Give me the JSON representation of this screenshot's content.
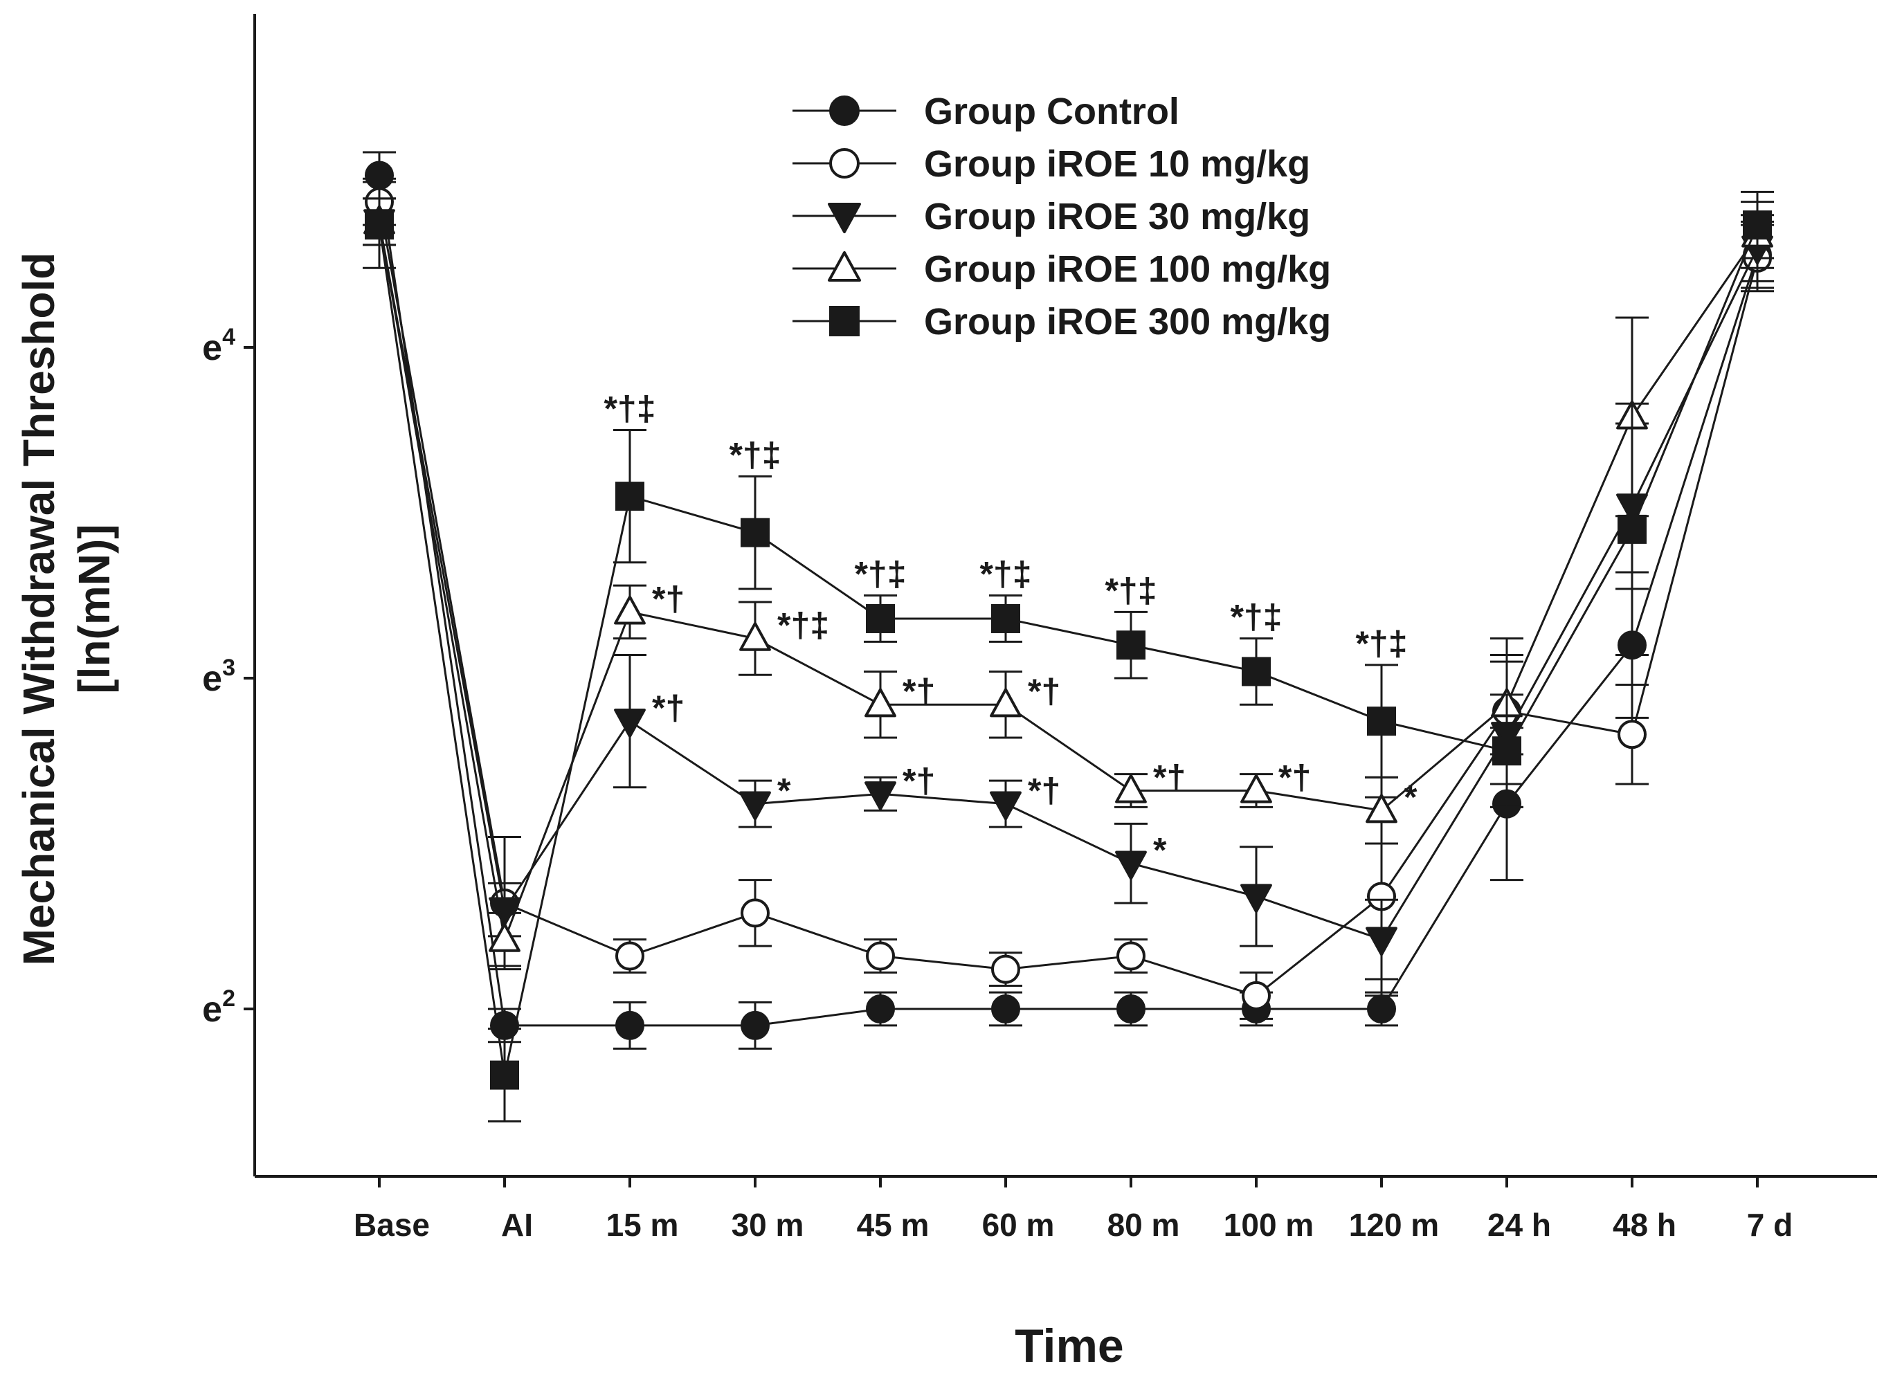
{
  "chart_data": {
    "type": "line",
    "title": "",
    "xlabel": "Time",
    "ylabel_line1": "Mechanical Withdrawal Threshold",
    "ylabel_line2": "[ln(mN)]",
    "categories": [
      "Base",
      "AI",
      "15 m",
      "30 m",
      "45 m",
      "60 m",
      "80 m",
      "100 m",
      "120 m",
      "24 h",
      "48 h",
      "7 d"
    ],
    "yscale": "natural-log",
    "ylim": [
      1.58,
      4.98
    ],
    "yticks": [
      {
        "value": 2,
        "base": "e",
        "exp": "2"
      },
      {
        "value": 3,
        "base": "e",
        "exp": "3"
      },
      {
        "value": 4,
        "base": "e",
        "exp": "4"
      }
    ],
    "legend_position": "top-center",
    "series": [
      {
        "name": "Group Control",
        "marker": "circle-filled",
        "values": [
          4.52,
          1.95,
          1.95,
          1.95,
          2.0,
          2.0,
          2.0,
          2.0,
          2.0,
          2.62,
          3.1,
          4.28
        ],
        "errors": [
          0.07,
          0.05,
          0.07,
          0.07,
          0.05,
          0.05,
          0.05,
          0.05,
          0.05,
          0.23,
          0.22,
          0.1
        ]
      },
      {
        "name": "Group iROE 10 mg/kg",
        "marker": "circle-open",
        "values": [
          4.44,
          2.32,
          2.16,
          2.29,
          2.16,
          2.12,
          2.16,
          2.04,
          2.34,
          2.9,
          2.83,
          4.27
        ],
        "errors": [
          0.07,
          0.2,
          0.05,
          0.1,
          0.05,
          0.05,
          0.05,
          0.07,
          0.3,
          0.22,
          0.15,
          0.1
        ]
      },
      {
        "name": "Group iROE 30 mg/kg",
        "marker": "triangle-down-filled",
        "values": [
          4.38,
          2.3,
          2.87,
          2.62,
          2.65,
          2.62,
          2.44,
          2.34,
          2.21,
          2.83,
          3.52,
          4.3
        ],
        "errors": [
          0.07,
          0.08,
          0.2,
          0.07,
          0.05,
          0.07,
          0.12,
          0.15,
          0.12,
          0.22,
          0.25,
          0.1
        ]
      },
      {
        "name": "Group iROE 100 mg/kg",
        "marker": "triangle-up-filled-open",
        "values": [
          4.38,
          2.21,
          3.2,
          3.12,
          2.92,
          2.92,
          2.66,
          2.66,
          2.6,
          2.92,
          3.79,
          4.34
        ],
        "errors": [
          0.07,
          0.08,
          0.08,
          0.11,
          0.1,
          0.1,
          0.05,
          0.05,
          0.1,
          0.15,
          0.3,
          0.1
        ]
      },
      {
        "name": "Group iROE 300 mg/kg",
        "marker": "square-filled",
        "values": [
          4.37,
          1.8,
          3.55,
          3.44,
          3.18,
          3.18,
          3.1,
          3.02,
          2.87,
          2.78,
          3.45,
          4.37
        ],
        "errors": [
          0.13,
          0.14,
          0.2,
          0.17,
          0.07,
          0.07,
          0.1,
          0.1,
          0.17,
          0.17,
          0.38,
          0.1
        ]
      }
    ],
    "annotations": [
      {
        "text": "*†‡",
        "series": "Group iROE 300 mg/kg",
        "index": 2
      },
      {
        "text": "*†‡",
        "series": "Group iROE 300 mg/kg",
        "index": 3
      },
      {
        "text": "*†‡",
        "series": "Group iROE 300 mg/kg",
        "index": 4
      },
      {
        "text": "*†‡",
        "series": "Group iROE 300 mg/kg",
        "index": 5
      },
      {
        "text": "*†‡",
        "series": "Group iROE 300 mg/kg",
        "index": 6
      },
      {
        "text": "*†‡",
        "series": "Group iROE 300 mg/kg",
        "index": 7
      },
      {
        "text": "*†‡",
        "series": "Group iROE 300 mg/kg",
        "index": 8
      },
      {
        "text": "*†",
        "series": "Group iROE 100 mg/kg",
        "index": 2
      },
      {
        "text": "*†‡",
        "series": "Group iROE 100 mg/kg",
        "index": 3
      },
      {
        "text": "*†",
        "series": "Group iROE 100 mg/kg",
        "index": 4
      },
      {
        "text": "*†",
        "series": "Group iROE 100 mg/kg",
        "index": 5
      },
      {
        "text": "*†",
        "series": "Group iROE 100 mg/kg",
        "index": 6
      },
      {
        "text": "*†",
        "series": "Group iROE 100 mg/kg",
        "index": 7
      },
      {
        "text": "*",
        "series": "Group iROE 100 mg/kg",
        "index": 8
      },
      {
        "text": "*†",
        "series": "Group iROE 30 mg/kg",
        "index": 2
      },
      {
        "text": "*",
        "series": "Group iROE 30 mg/kg",
        "index": 3
      },
      {
        "text": "*†",
        "series": "Group iROE 30 mg/kg",
        "index": 4
      },
      {
        "text": "*†",
        "series": "Group iROE 30 mg/kg",
        "index": 5
      },
      {
        "text": "*",
        "series": "Group iROE 30 mg/kg",
        "index": 6
      }
    ]
  }
}
